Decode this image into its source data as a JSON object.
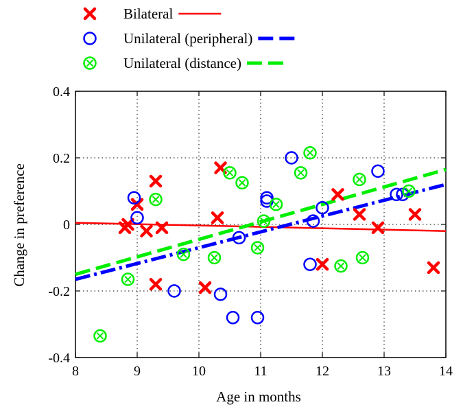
{
  "chart_data": {
    "type": "scatter",
    "xlabel": "Age in months",
    "ylabel": "Change in preference",
    "xlim": [
      8,
      14
    ],
    "ylim": [
      -0.4,
      0.4
    ],
    "x_ticks": [
      8,
      9,
      10,
      11,
      12,
      13,
      14
    ],
    "y_ticks": [
      -0.4,
      -0.2,
      0,
      0.2,
      0.4
    ],
    "y_tick_labels": [
      "-0.4",
      "-0.2",
      "0",
      "0.2",
      "0.4"
    ],
    "grid": true,
    "legend_position": "top-left, above plot",
    "series": [
      {
        "name": "Bilateral",
        "marker": "x",
        "color": "#ff0000",
        "line_style": "solid",
        "points": [
          [
            8.8,
            -0.01
          ],
          [
            8.85,
            0.0
          ],
          [
            9.0,
            0.06
          ],
          [
            9.15,
            -0.02
          ],
          [
            9.3,
            -0.18
          ],
          [
            9.3,
            0.13
          ],
          [
            9.4,
            -0.01
          ],
          [
            10.1,
            -0.19
          ],
          [
            10.3,
            0.02
          ],
          [
            10.35,
            0.17
          ],
          [
            12.0,
            -0.12
          ],
          [
            12.25,
            0.09
          ],
          [
            12.6,
            0.03
          ],
          [
            12.9,
            -0.01
          ],
          [
            13.5,
            0.03
          ],
          [
            13.8,
            -0.13
          ]
        ],
        "fit": [
          [
            8,
            0.005
          ],
          [
            14,
            -0.02
          ]
        ]
      },
      {
        "name": "Unilateral (peripheral)",
        "marker": "circle",
        "color": "#0000ff",
        "line_style": "dash-dot",
        "points": [
          [
            8.95,
            0.08
          ],
          [
            9.0,
            0.02
          ],
          [
            9.6,
            -0.2
          ],
          [
            10.35,
            -0.21
          ],
          [
            10.55,
            -0.28
          ],
          [
            10.65,
            -0.04
          ],
          [
            10.95,
            -0.28
          ],
          [
            11.1,
            0.07
          ],
          [
            11.1,
            0.08
          ],
          [
            11.5,
            0.2
          ],
          [
            11.8,
            -0.12
          ],
          [
            11.85,
            0.01
          ],
          [
            12.0,
            0.05
          ],
          [
            12.9,
            0.16
          ],
          [
            13.2,
            0.09
          ],
          [
            13.3,
            0.09
          ]
        ],
        "fit": [
          [
            8,
            -0.165
          ],
          [
            14,
            0.12
          ]
        ]
      },
      {
        "name": "Unilateral (distance)",
        "marker": "circle-x",
        "color": "#00ee00",
        "line_style": "dashed",
        "points": [
          [
            8.4,
            -0.335
          ],
          [
            8.85,
            -0.165
          ],
          [
            9.3,
            0.075
          ],
          [
            9.75,
            -0.09
          ],
          [
            10.25,
            -0.1
          ],
          [
            10.5,
            0.155
          ],
          [
            10.7,
            0.125
          ],
          [
            10.95,
            -0.07
          ],
          [
            11.05,
            0.01
          ],
          [
            11.25,
            0.06
          ],
          [
            11.65,
            0.155
          ],
          [
            11.8,
            0.215
          ],
          [
            12.3,
            -0.125
          ],
          [
            12.6,
            0.135
          ],
          [
            12.65,
            -0.1
          ],
          [
            13.4,
            0.1
          ]
        ],
        "fit": [
          [
            8,
            -0.15
          ],
          [
            14,
            0.165
          ]
        ]
      }
    ]
  }
}
